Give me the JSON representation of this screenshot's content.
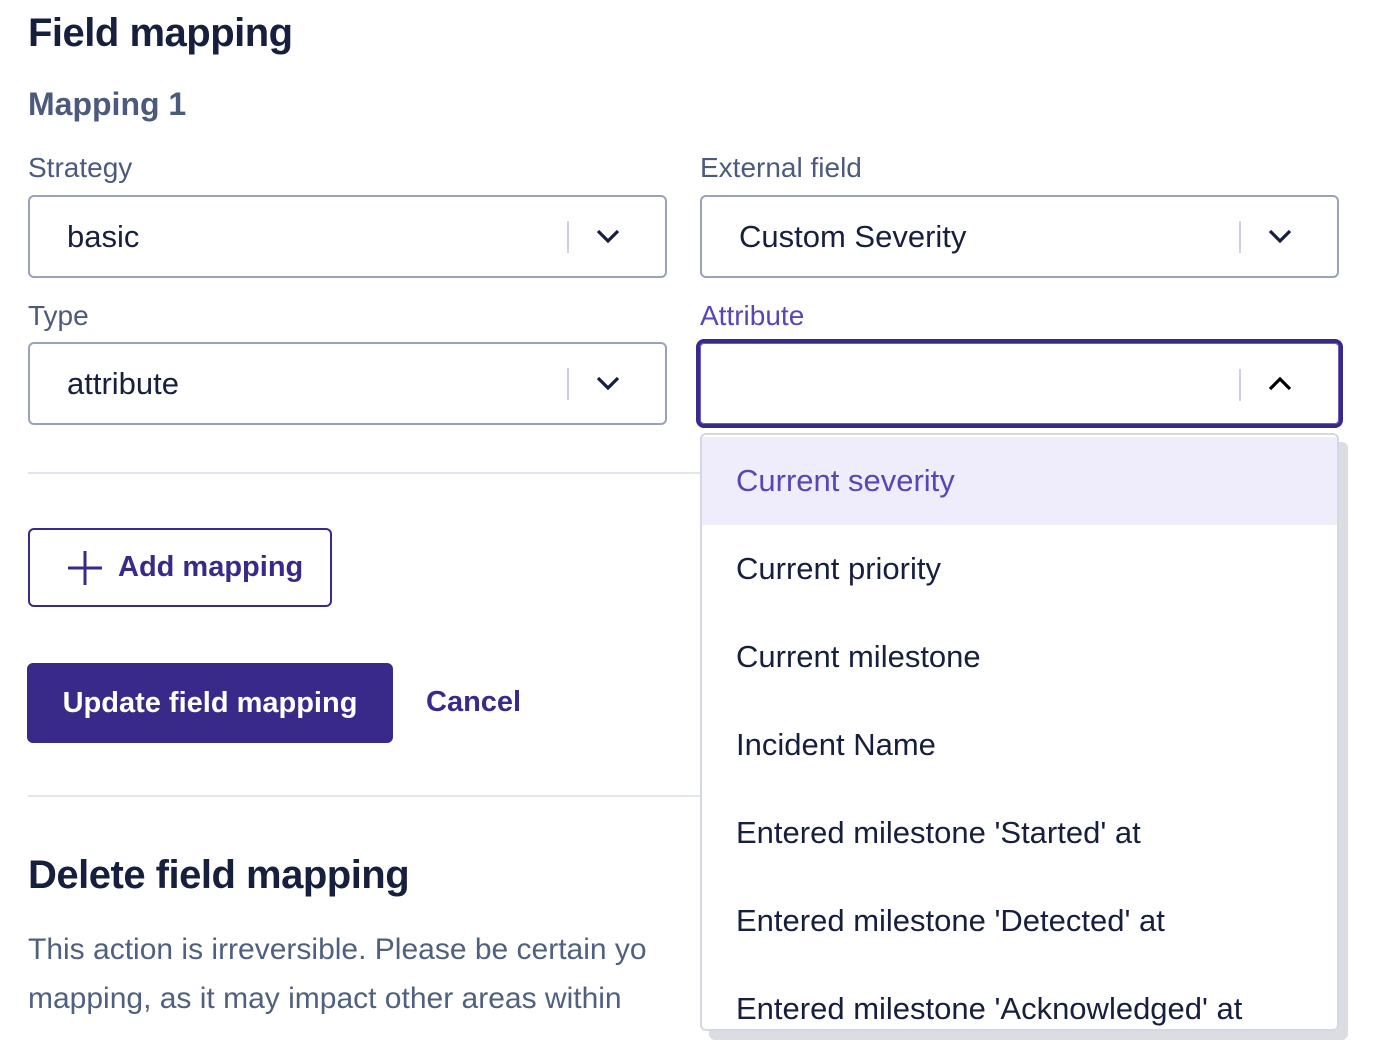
{
  "page": {
    "title": "Field mapping",
    "mapping_heading": "Mapping 1"
  },
  "form": {
    "strategy": {
      "label": "Strategy",
      "value": "basic"
    },
    "external_field": {
      "label": "External field",
      "value": "Custom Severity"
    },
    "type": {
      "label": "Type",
      "value": "attribute"
    },
    "attribute": {
      "label": "Attribute",
      "value": "",
      "open": true
    }
  },
  "dropdown": {
    "options": [
      "Current severity",
      "Current priority",
      "Current milestone",
      "Incident Name",
      "Entered milestone 'Started' at",
      "Entered milestone 'Detected' at",
      "Entered milestone 'Acknowledged' at"
    ],
    "highlighted_index": 0
  },
  "actions": {
    "add_mapping": "Add mapping",
    "update": "Update field mapping",
    "cancel": "Cancel"
  },
  "delete": {
    "title": "Delete field mapping",
    "line1": "This action is irreversible. Please be certain yo",
    "line2": "mapping, as it may impact other areas within"
  },
  "colors": {
    "primary": "#392a8a",
    "highlight_bg": "#efedfc",
    "highlight_text": "#5a45b5"
  }
}
